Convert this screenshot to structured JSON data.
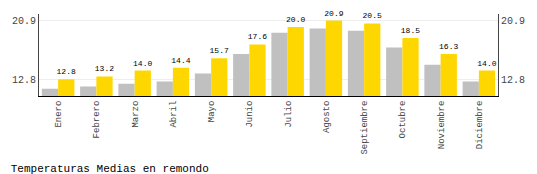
{
  "chart_data": {
    "type": "bar",
    "title": "Temperaturas Medias en remondo",
    "categories": [
      "Enero",
      "Febrero",
      "Marzo",
      "Abril",
      "Mayo",
      "Junio",
      "Julio",
      "Agosto",
      "Septiembre",
      "Octubre",
      "Noviembre",
      "Diciembre"
    ],
    "series": [
      {
        "color": "#C0C0C0",
        "values": [
          11.5,
          11.8,
          12.2,
          12.5,
          13.6,
          16.3,
          19.2,
          19.8,
          19.5,
          17.2,
          14.8,
          12.5
        ]
      },
      {
        "color": "#FFD700",
        "values": [
          12.8,
          13.2,
          14.0,
          14.4,
          15.7,
          17.6,
          20.0,
          20.9,
          20.5,
          18.5,
          16.3,
          14.0
        ],
        "value_labels": [
          "12.8",
          "13.2",
          "14.0",
          "14.4",
          "15.7",
          "17.6",
          "20.0",
          "20.9",
          "20.5",
          "18.5",
          "16.3",
          "14.0"
        ],
        "data_labels": true
      }
    ],
    "ylim": [
      10.5,
      21.8
    ],
    "yticks": [
      12.8,
      20.9
    ],
    "y2lim": [
      10.5,
      21.8
    ],
    "y2ticks": [
      12.8,
      20.9
    ],
    "grid": true
  }
}
